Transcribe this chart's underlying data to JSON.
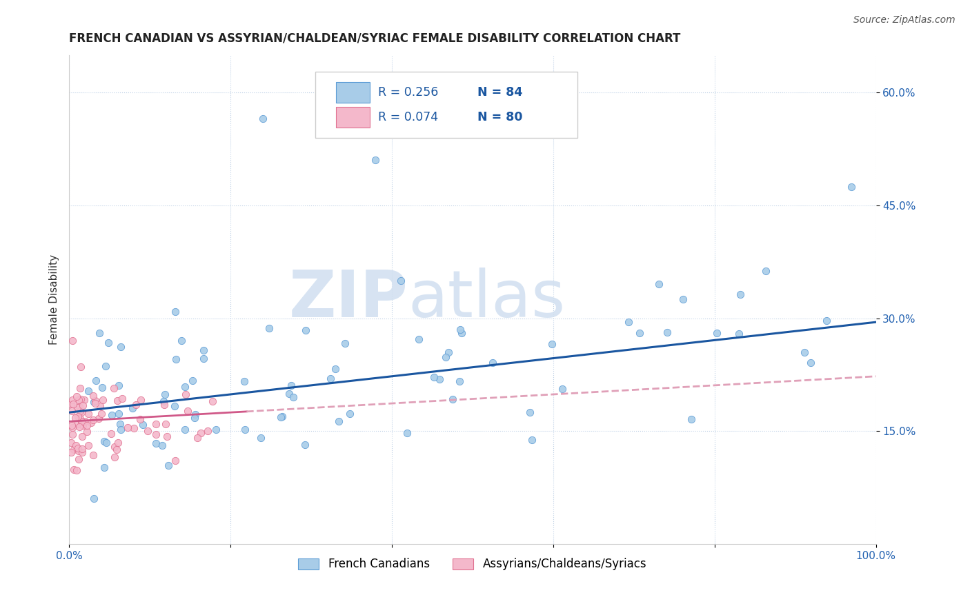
{
  "title": "FRENCH CANADIAN VS ASSYRIAN/CHALDEAN/SYRIAC FEMALE DISABILITY CORRELATION CHART",
  "source": "Source: ZipAtlas.com",
  "ylabel": "Female Disability",
  "xlim": [
    0,
    1
  ],
  "ylim": [
    0,
    0.65
  ],
  "yticks": [
    0.15,
    0.3,
    0.45,
    0.6
  ],
  "ytick_labels": [
    "15.0%",
    "30.0%",
    "45.0%",
    "60.0%"
  ],
  "xticks": [
    0.0,
    0.2,
    0.4,
    0.6,
    0.8,
    1.0
  ],
  "xtick_labels": [
    "0.0%",
    "",
    "",
    "",
    "",
    "100.0%"
  ],
  "legend_label1": "French Canadians",
  "legend_label2": "Assyrians/Chaldeans/Syriacs",
  "R1": 0.256,
  "N1": 84,
  "R2": 0.074,
  "N2": 80,
  "color_blue": "#a8cce8",
  "color_pink": "#f4b8cb",
  "edge_blue": "#5b9bd5",
  "edge_pink": "#e07090",
  "line_blue": "#1a56a0",
  "line_pink_solid": "#d05888",
  "line_pink_dash": "#e0a0b8",
  "watermark_zip": "ZIP",
  "watermark_atlas": "atlas",
  "title_fontsize": 12,
  "label_fontsize": 11,
  "tick_fontsize": 11,
  "source_fontsize": 10
}
